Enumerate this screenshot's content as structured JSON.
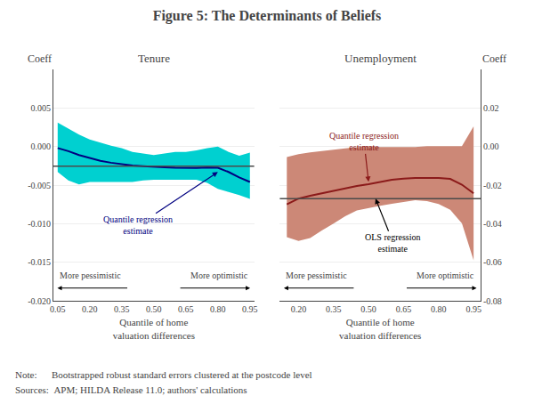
{
  "title": "Figure 5: The Determinants of Beliefs",
  "annotations": [
    "Note:      Bootstrapped robust standard errors clustered at the postcode level",
    "Sources:  APM; HILDA Release 11.0; authors' calculations"
  ],
  "chart_data": [
    {
      "type": "line",
      "title": "Tenure",
      "ylabel": "Coeff",
      "xlabel": "Quantile of home\nvaluation differences",
      "x": [
        0.05,
        0.1,
        0.15,
        0.2,
        0.25,
        0.3,
        0.35,
        0.4,
        0.45,
        0.5,
        0.55,
        0.6,
        0.65,
        0.7,
        0.75,
        0.8,
        0.85,
        0.9,
        0.95
      ],
      "series": [
        {
          "type": "line",
          "color": "#000080",
          "fill_color": "#00D0D0",
          "values": [
            -0.0002,
            -0.0006,
            -0.0011,
            -0.0015,
            -0.00185,
            -0.0021,
            -0.0023,
            -0.00245,
            -0.00255,
            -0.00265,
            -0.0027,
            -0.00275,
            -0.00278,
            -0.00278,
            -0.00272,
            -0.00275,
            -0.0033,
            -0.004,
            -0.0046
          ],
          "upper": [
            0.0031,
            0.0023,
            0.00155,
            0.0009,
            0.0005,
            0.0001,
            -0.0002,
            -0.0007,
            -0.0009,
            -0.0011,
            -0.0009,
            -0.0007,
            -0.0007,
            -0.0005,
            -0.0002,
            0.0,
            -0.0007,
            -0.0012,
            -0.0008
          ],
          "lower": [
            -0.0033,
            -0.0044,
            -0.0049,
            -0.0046,
            -0.0046,
            -0.0046,
            -0.0046,
            -0.0046,
            -0.0044,
            -0.0043,
            -0.0043,
            -0.0043,
            -0.0043,
            -0.0043,
            -0.0047,
            -0.0055,
            -0.0059,
            -0.0063,
            -0.0068
          ]
        }
      ],
      "reference_line": {
        "value": -0.00255,
        "color": "#4A4A4A"
      },
      "xlim": [
        0.03,
        0.97
      ],
      "ylim": [
        -0.02,
        0.01
      ],
      "xticks": [
        0.05,
        {
          "value": 0.2,
          "label": "0.20"
        },
        0.35,
        {
          "value": 0.5,
          "label": "0.50"
        },
        0.65,
        {
          "value": 0.8,
          "label": "0.80"
        },
        0.95
      ],
      "yticks": [
        {
          "value": -0.02,
          "label": "-0.020"
        },
        -0.015,
        {
          "value": -0.01,
          "label": "-0.010"
        },
        -0.005,
        {
          "value": 0.0,
          "label": "0.000"
        },
        0.005
      ],
      "grid": true,
      "annotations": [
        {
          "text": "Quantile regression\nestimate",
          "x": 0.8,
          "y": -0.0033,
          "color": "#000080"
        }
      ],
      "direction_labels": [
        "More pessimistic",
        "More optimistic"
      ]
    },
    {
      "type": "line",
      "title": "Unemployment",
      "ylabel": "Coeff",
      "xlabel": "Quantile of home\nvaluation differences",
      "x": [
        0.15,
        0.2,
        0.25,
        0.3,
        0.35,
        0.4,
        0.45,
        0.5,
        0.55,
        0.6,
        0.65,
        0.7,
        0.75,
        0.8,
        0.85,
        0.9,
        0.95
      ],
      "series": [
        {
          "type": "line",
          "color": "#8B1A1A",
          "fill_color": "#CC8877",
          "values": [
            -0.03,
            -0.027,
            -0.0255,
            -0.0242,
            -0.0228,
            -0.0215,
            -0.0205,
            -0.0195,
            -0.0183,
            -0.0172,
            -0.0167,
            -0.0163,
            -0.0163,
            -0.0163,
            -0.0168,
            -0.0198,
            -0.0243
          ],
          "upper": [
            -0.0055,
            -0.004,
            -0.003,
            -0.0022,
            -0.0017,
            -0.001,
            -0.0003,
            0.0002,
            -0.0003,
            -0.0003,
            -0.0003,
            -0.0003,
            0.0002,
            0.0002,
            0.0002,
            0.0002,
            0.0105
          ],
          "lower": [
            -0.047,
            -0.049,
            -0.0475,
            -0.0435,
            -0.04,
            -0.0362,
            -0.0332,
            -0.0318,
            -0.0307,
            -0.0297,
            -0.0288,
            -0.0278,
            -0.0283,
            -0.0298,
            -0.0328,
            -0.0398,
            -0.059
          ]
        }
      ],
      "reference_line": {
        "value": -0.027,
        "color": "#4A4A4A"
      },
      "xlim": [
        0.12,
        0.98
      ],
      "ylim": [
        -0.08,
        0.04
      ],
      "xticks": [
        {
          "value": 0.2,
          "label": "0.20"
        },
        0.35,
        {
          "value": 0.5,
          "label": "0.50"
        },
        0.65,
        {
          "value": 0.8,
          "label": "0.80"
        },
        0.95
      ],
      "yticks": [
        -0.08,
        -0.06,
        -0.04,
        -0.02,
        {
          "value": 0.0,
          "label": "0.00"
        },
        {
          "value": 0.02,
          "label": "0.02"
        }
      ],
      "grid": true,
      "annotations": [
        {
          "text": "Quantile regression\nestimate",
          "x": 0.5,
          "y": -0.0183,
          "color": "#8B1A1A"
        },
        {
          "text": "OLS regression\nestimate",
          "x": 0.53,
          "y": -0.027
        }
      ],
      "direction_labels": [
        "More pessimistic",
        "More optimistic"
      ]
    }
  ]
}
